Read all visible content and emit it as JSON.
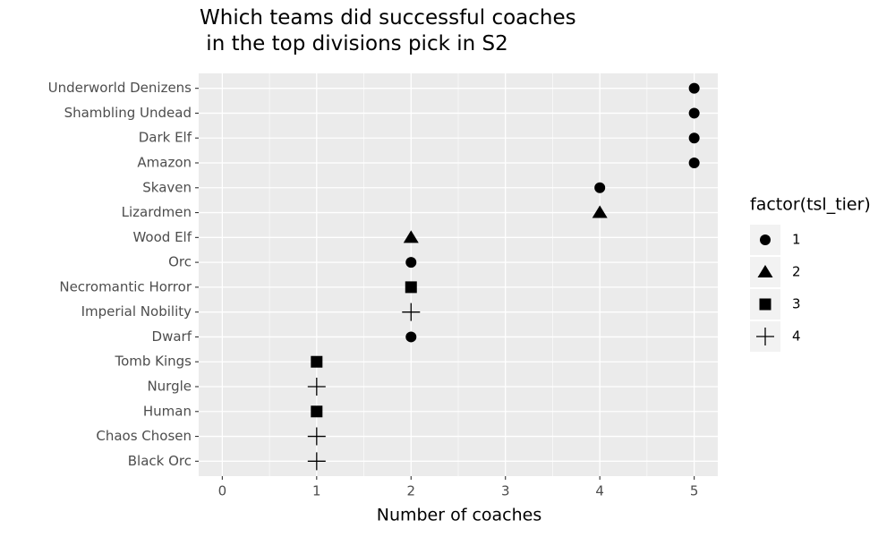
{
  "chart_data": {
    "type": "scatter",
    "title": "Which teams did successful coaches\n in the top divisions pick in S2",
    "x_label": "Number of coaches",
    "legend_title": "factor(tsl_tier)",
    "categories": [
      "Underworld Denizens",
      "Shambling Undead",
      "Dark Elf",
      "Amazon",
      "Skaven",
      "Lizardmen",
      "Wood Elf",
      "Orc",
      "Necromantic Horror",
      "Imperial Nobility",
      "Dwarf",
      "Tomb Kings",
      "Nurgle",
      "Human",
      "Chaos Chosen",
      "Black Orc"
    ],
    "series": [
      {
        "name": "1",
        "shape": "circle",
        "color": "#000000",
        "values": [
          5,
          5,
          5,
          5,
          4,
          null,
          null,
          2,
          null,
          null,
          2,
          null,
          null,
          null,
          null,
          null
        ]
      },
      {
        "name": "2",
        "shape": "triangle",
        "color": "#000000",
        "values": [
          null,
          null,
          null,
          null,
          null,
          4,
          2,
          null,
          null,
          null,
          null,
          null,
          null,
          null,
          null,
          null
        ]
      },
      {
        "name": "3",
        "shape": "square",
        "color": "#000000",
        "values": [
          null,
          null,
          null,
          null,
          null,
          null,
          null,
          null,
          2,
          null,
          null,
          1,
          null,
          1,
          null,
          null
        ]
      },
      {
        "name": "4",
        "shape": "plus",
        "color": "#000000",
        "values": [
          null,
          null,
          null,
          null,
          null,
          null,
          null,
          null,
          null,
          2,
          null,
          null,
          1,
          null,
          1,
          1
        ]
      }
    ],
    "xlim": [
      -0.25,
      5.25
    ],
    "xticks": [
      0,
      1,
      2,
      3,
      4,
      5
    ],
    "grid": true
  }
}
